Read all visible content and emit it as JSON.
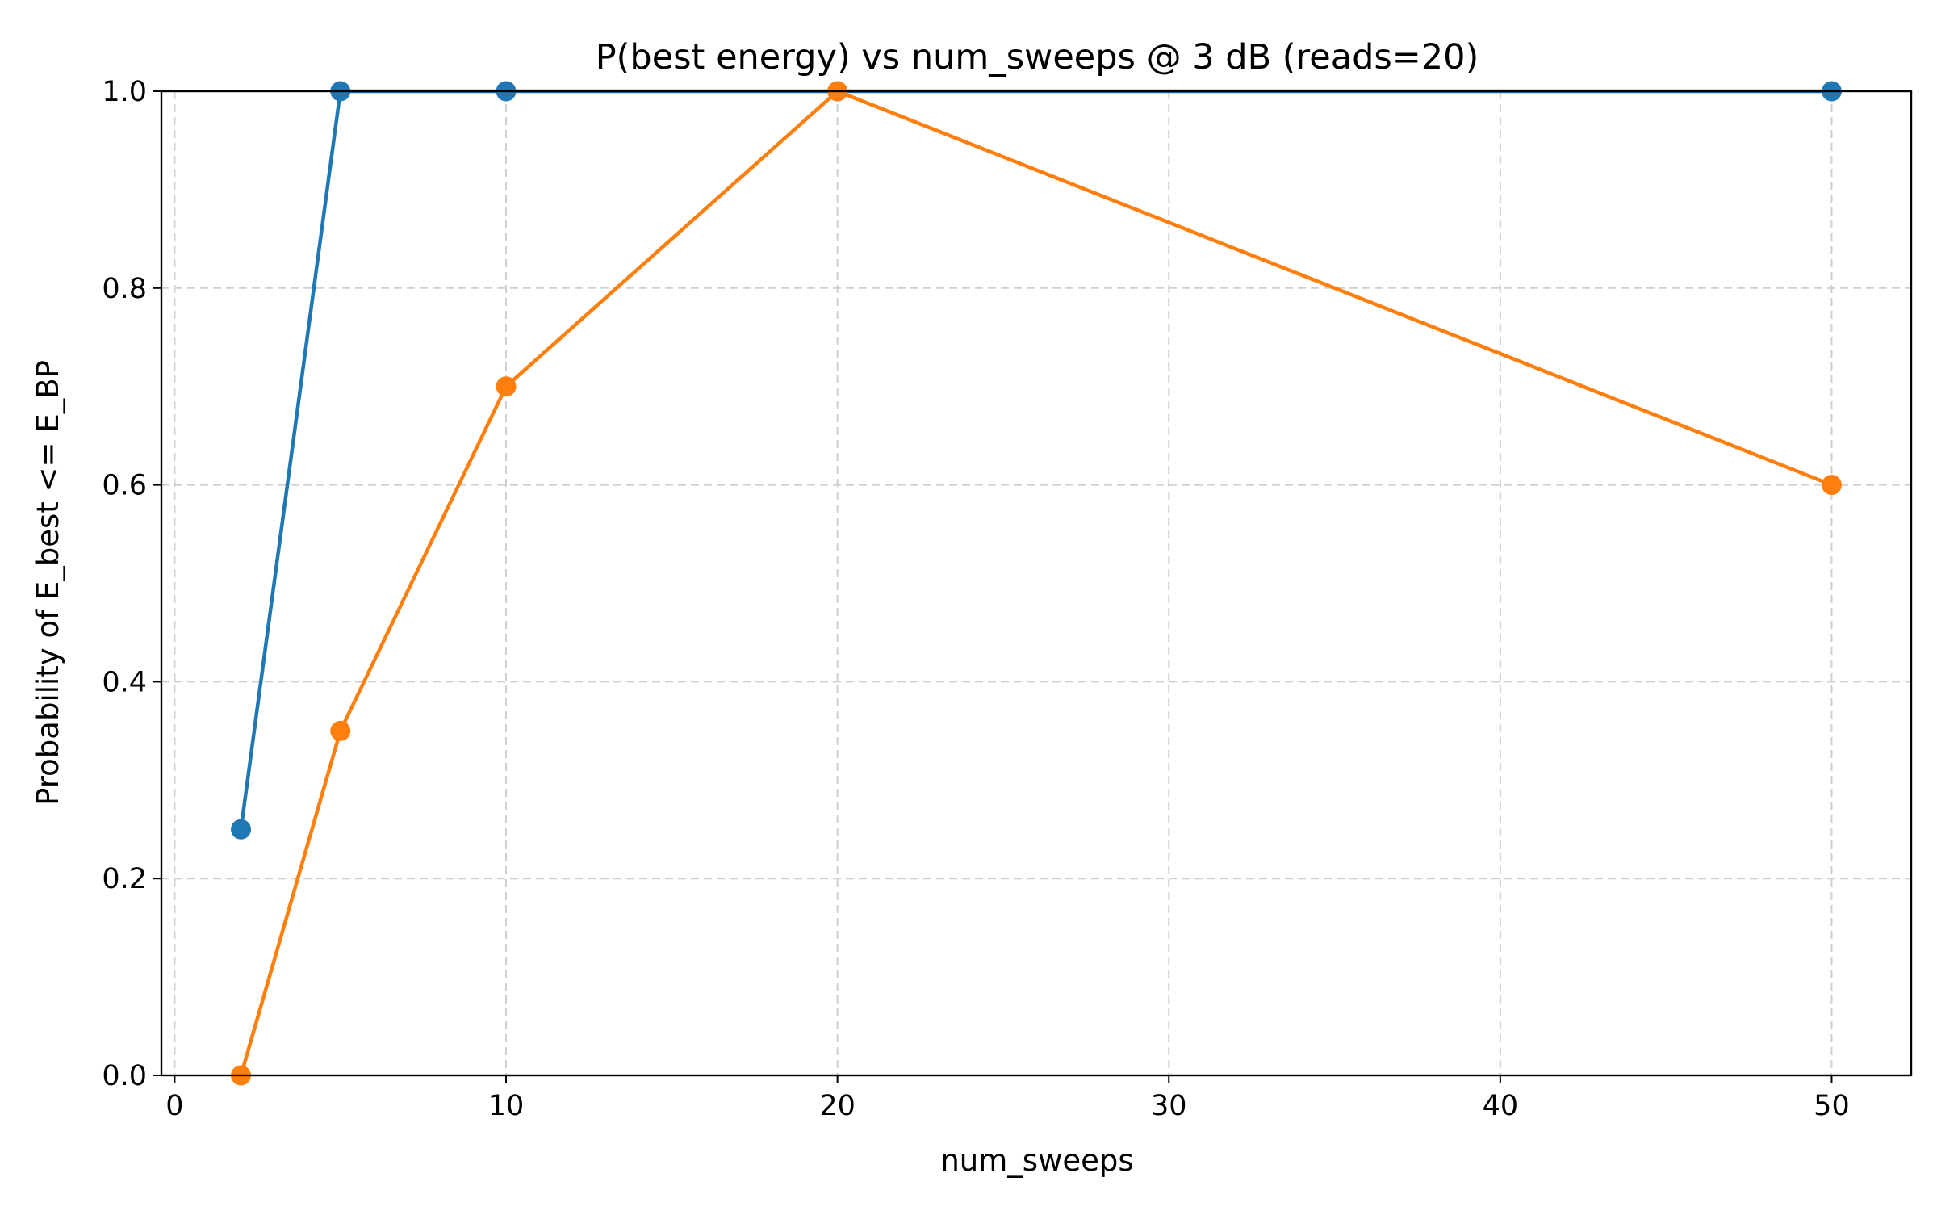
{
  "chart_data": {
    "type": "line",
    "title": "P(best energy) vs num_sweeps @ 3 dB (reads=20)",
    "xlabel": "num_sweeps",
    "ylabel": "Probability of E_best <= E_BP",
    "xlim": [
      -0.4,
      52.4
    ],
    "ylim": [
      0.0,
      1.0
    ],
    "xticks": [
      0,
      10,
      20,
      30,
      40,
      50
    ],
    "yticks": [
      0.0,
      0.2,
      0.4,
      0.6,
      0.8,
      1.0
    ],
    "xtick_labels": [
      "0",
      "10",
      "20",
      "30",
      "40",
      "50"
    ],
    "ytick_labels": [
      "0.0",
      "0.2",
      "0.4",
      "0.6",
      "0.8",
      "1.0"
    ],
    "grid": true,
    "x": [
      2,
      5,
      10,
      20,
      50
    ],
    "series": [
      {
        "color": "#1f77b4",
        "values": [
          0.25,
          1.0,
          1.0,
          1.0,
          1.0
        ]
      },
      {
        "color": "#ff7f0e",
        "values": [
          0.0,
          0.35,
          0.7,
          1.0,
          0.6
        ]
      }
    ]
  }
}
